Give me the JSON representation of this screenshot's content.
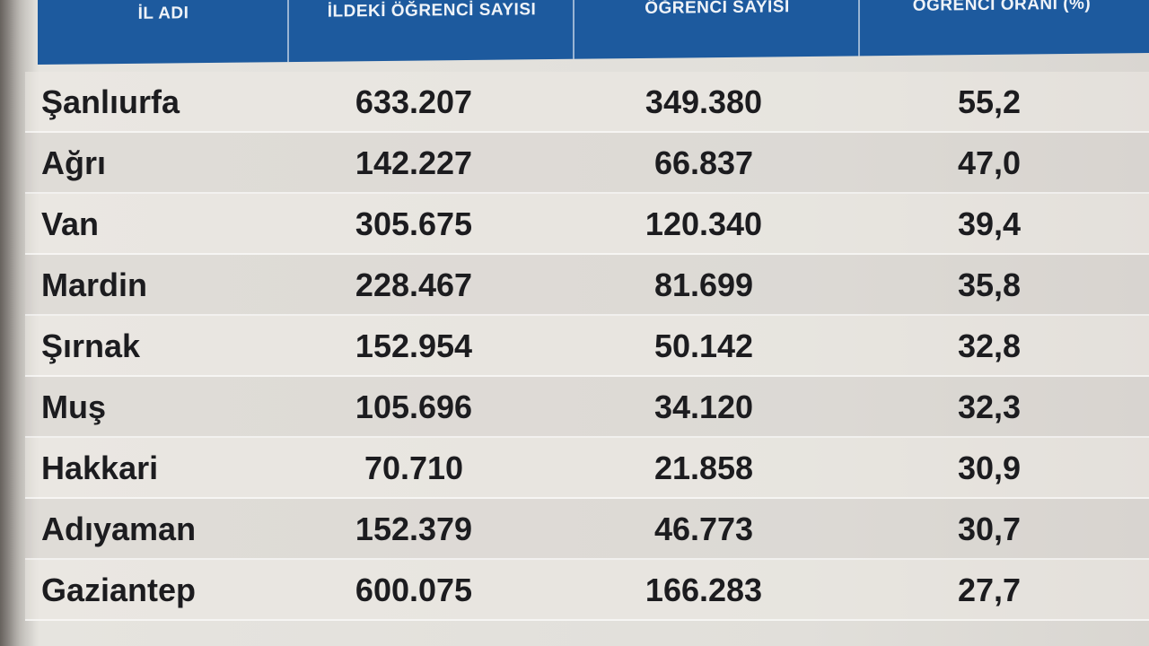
{
  "table": {
    "headers": {
      "il_adi": "İL ADI",
      "ildeki_ogrenci_sayisi": "İLDEKİ ÖĞRENCİ SAYISI",
      "ogrenci_sayisi": "ÖĞRENCİ SAYISI",
      "ogrenci_orani": "ÖĞRENCİ ORANI (%)"
    },
    "rows": [
      {
        "il": "Şanlıurfa",
        "ildeki": "633.207",
        "ogrenci": "349.380",
        "oran": "55,2"
      },
      {
        "il": "Ağrı",
        "ildeki": "142.227",
        "ogrenci": "66.837",
        "oran": "47,0"
      },
      {
        "il": "Van",
        "ildeki": "305.675",
        "ogrenci": "120.340",
        "oran": "39,4"
      },
      {
        "il": "Mardin",
        "ildeki": "228.467",
        "ogrenci": "81.699",
        "oran": "35,8"
      },
      {
        "il": "Şırnak",
        "ildeki": "152.954",
        "ogrenci": "50.142",
        "oran": "32,8"
      },
      {
        "il": "Muş",
        "ildeki": "105.696",
        "ogrenci": "34.120",
        "oran": "32,3"
      },
      {
        "il": "Hakkari",
        "ildeki": "70.710",
        "ogrenci": "21.858",
        "oran": "30,9"
      },
      {
        "il": "Adıyaman",
        "ildeki": "152.379",
        "ogrenci": "46.773",
        "oran": "30,7"
      },
      {
        "il": "Gaziantep",
        "ildeki": "600.075",
        "ogrenci": "166.283",
        "oran": "27,7"
      }
    ]
  },
  "colors": {
    "header_bg": "#1d5a9e",
    "header_text": "#ffffff",
    "cell_text": "#1c1c1f"
  }
}
